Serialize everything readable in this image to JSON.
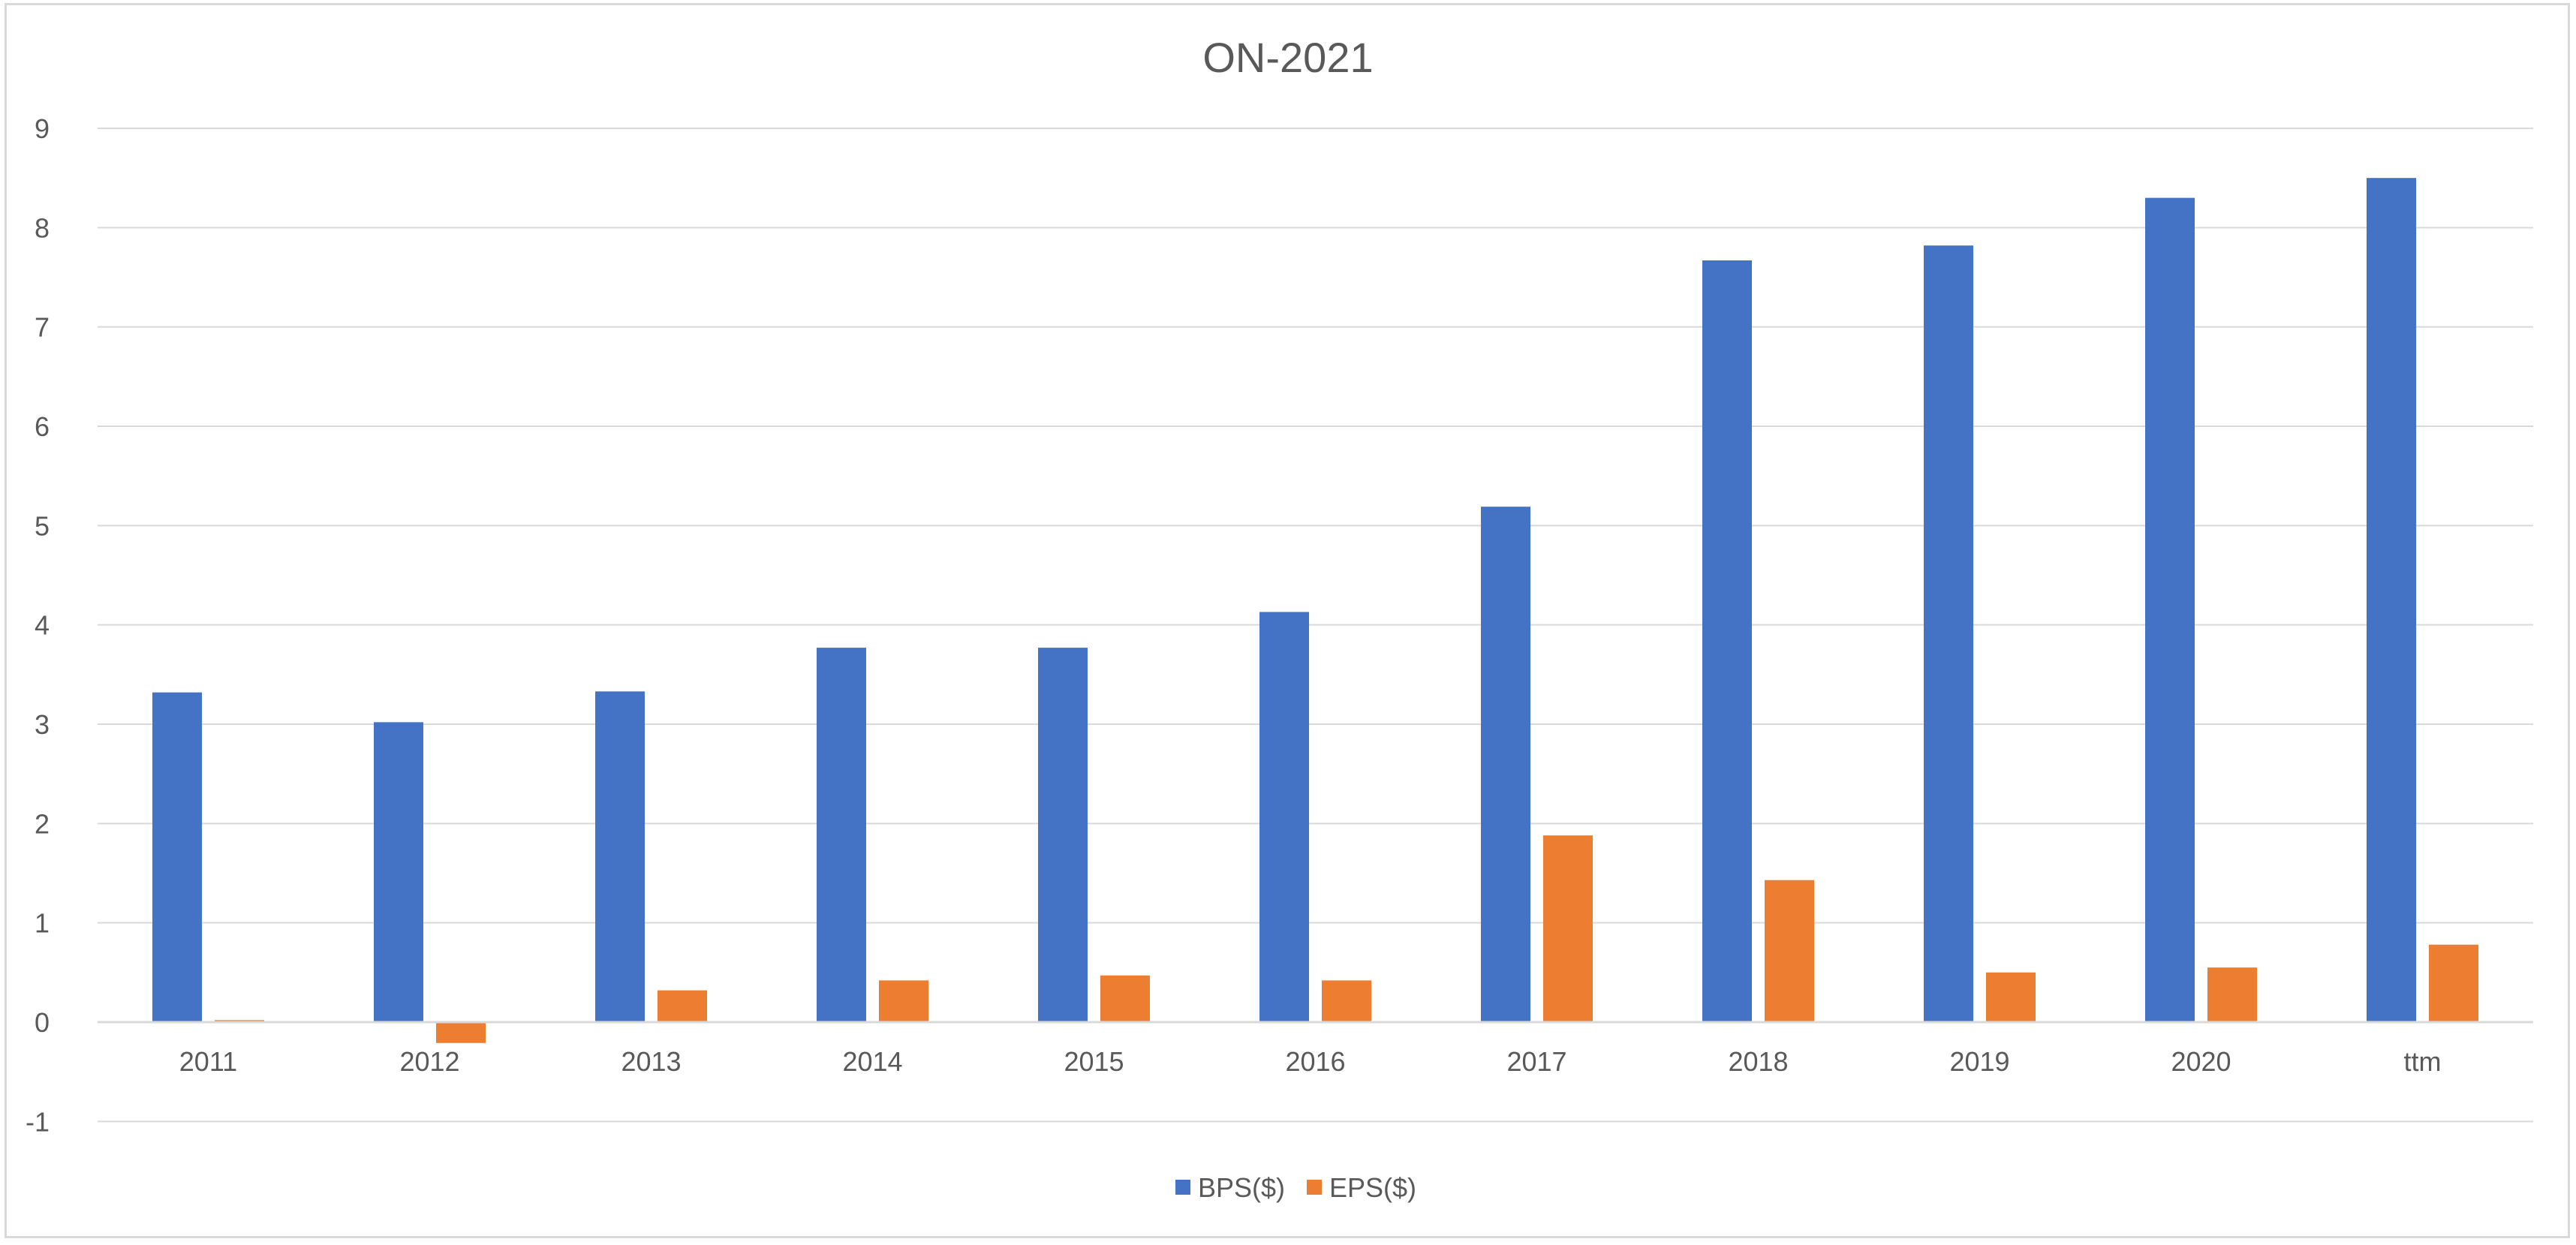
{
  "chart_data": {
    "type": "bar",
    "title": "ON-2021",
    "categories": [
      "2011",
      "2012",
      "2013",
      "2014",
      "2015",
      "2016",
      "2017",
      "2018",
      "2019",
      "2020",
      "ttm"
    ],
    "series": [
      {
        "name": "BPS($)",
        "color": "#4472c4",
        "values": [
          3.32,
          3.02,
          3.33,
          3.77,
          3.77,
          4.13,
          5.19,
          7.67,
          7.82,
          8.3,
          8.5
        ]
      },
      {
        "name": "EPS($)",
        "color": "#ed7d31",
        "values": [
          0.02,
          -0.21,
          0.32,
          0.42,
          0.47,
          0.42,
          1.88,
          1.43,
          0.5,
          0.55,
          0.78
        ]
      }
    ],
    "ylim": [
      -1,
      9
    ],
    "yticks": [
      "-1",
      "0",
      "1",
      "2",
      "3",
      "4",
      "5",
      "6",
      "7",
      "8",
      "9"
    ],
    "xlabel": "",
    "ylabel": "",
    "grid": true,
    "legend_position": "bottom"
  }
}
